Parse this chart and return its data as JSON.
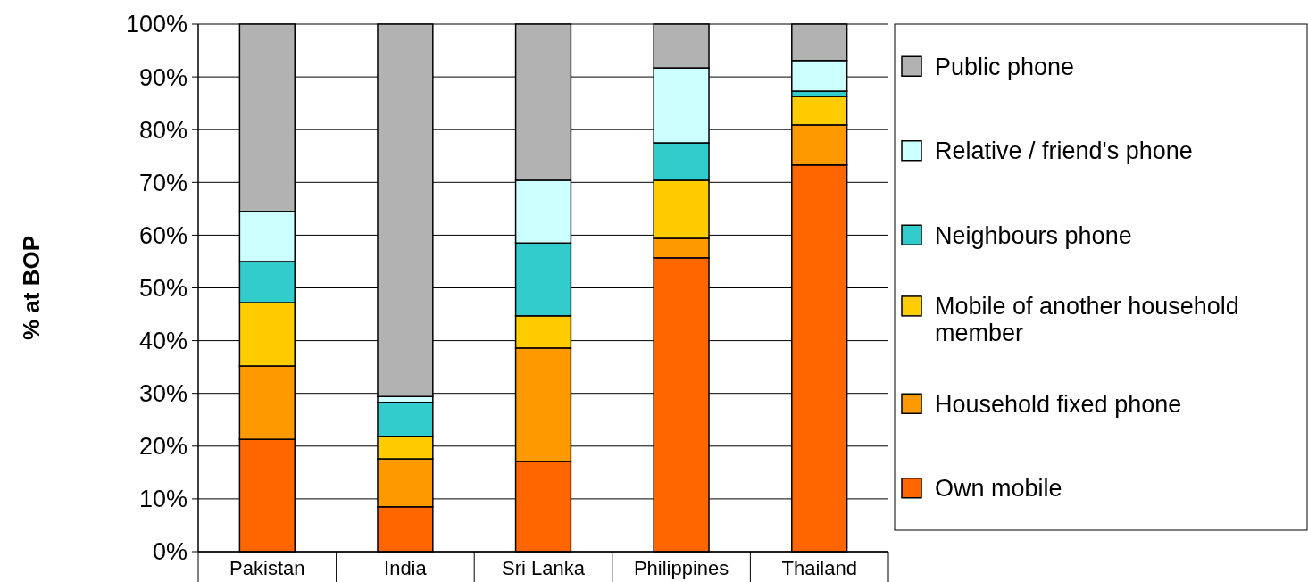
{
  "chart_data": {
    "type": "bar",
    "stacked": true,
    "ylabel": "% at BOP",
    "categories": [
      "Pakistan",
      "India",
      "Sri Lanka",
      "Philippines",
      "Thailand"
    ],
    "series": [
      {
        "name": "Own mobile",
        "color": "#ff6600",
        "values": [
          21.3,
          8.5,
          17.1,
          55.7,
          73.3
        ]
      },
      {
        "name": "Household fixed phone",
        "color": "#ff9900",
        "values": [
          13.9,
          9.1,
          21.5,
          3.7,
          7.6
        ]
      },
      {
        "name": "Mobile of another household member",
        "color": "#ffcc00",
        "values": [
          12.0,
          4.2,
          6.1,
          11.0,
          5.4
        ]
      },
      {
        "name": "Neighbours phone",
        "color": "#33cccc",
        "values": [
          7.8,
          6.5,
          13.8,
          7.1,
          1.0
        ]
      },
      {
        "name": "Relative / friend's phone",
        "color": "#ccffff",
        "values": [
          9.5,
          1.1,
          11.9,
          14.2,
          5.8
        ]
      },
      {
        "name": "Public phone",
        "color": "#b2b2b2",
        "values": [
          35.5,
          70.6,
          29.6,
          8.3,
          6.9
        ]
      }
    ],
    "ylim": [
      0,
      100
    ],
    "yticks": [
      {
        "value": 0,
        "label": "0%"
      },
      {
        "value": 10,
        "label": "10%"
      },
      {
        "value": 20,
        "label": "20%"
      },
      {
        "value": 30,
        "label": "30%"
      },
      {
        "value": 40,
        "label": "40%"
      },
      {
        "value": 50,
        "label": "50%"
      },
      {
        "value": 60,
        "label": "60%"
      },
      {
        "value": 70,
        "label": "70%"
      },
      {
        "value": 80,
        "label": "80%"
      },
      {
        "value": 90,
        "label": "90%"
      },
      {
        "value": 100,
        "label": "100%"
      }
    ],
    "grid": "y",
    "legend": "right"
  }
}
